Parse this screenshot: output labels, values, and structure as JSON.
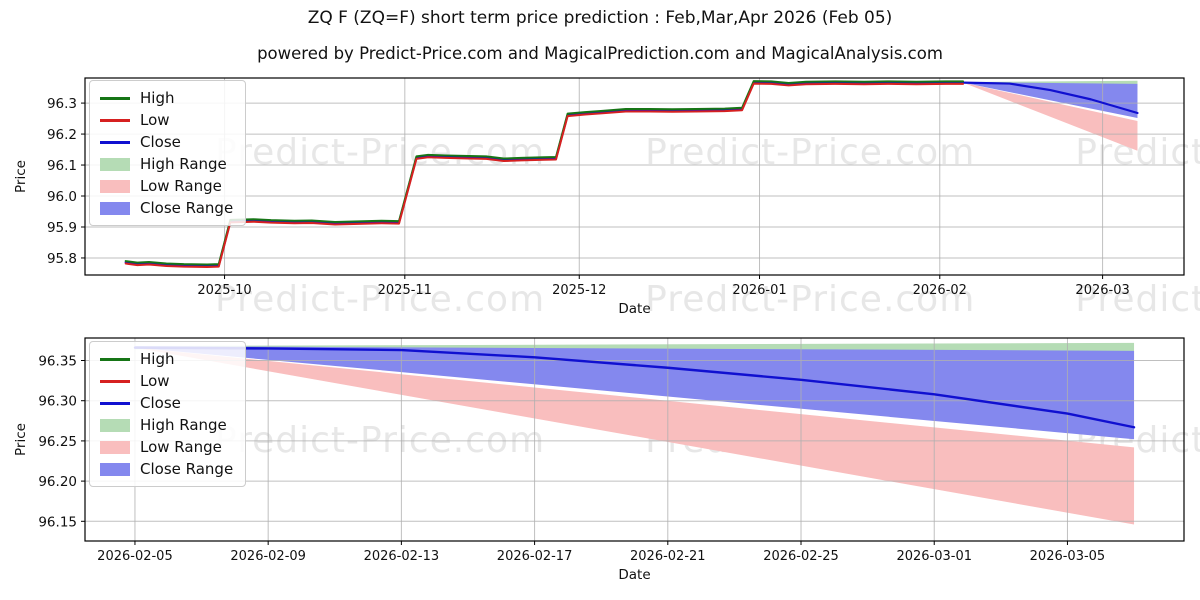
{
  "figure": {
    "title": "ZQ F (ZQ=F) short term price prediction : Feb,Mar,Apr 2026 (Feb 05)",
    "subtitle": "powered by Predict-Price.com and MagicalPrediction.com and MagicalAnalysis.com",
    "watermark_text": "Predict-Price.com",
    "background": "#ffffff"
  },
  "colors": {
    "high_line": "#167516",
    "low_line": "#d62020",
    "close_line": "#1010d0",
    "high_range": "#b5dcb5",
    "low_range": "#f9bebe",
    "close_range": "#8488ee",
    "grid": "#b0b0b0",
    "frame": "#000000",
    "text": "#111111"
  },
  "legend": {
    "items": [
      {
        "label": "High",
        "swatch": "line",
        "color_key": "high_line"
      },
      {
        "label": "Low",
        "swatch": "line",
        "color_key": "low_line"
      },
      {
        "label": "Close",
        "swatch": "line",
        "color_key": "close_line"
      },
      {
        "label": "High Range",
        "swatch": "patch",
        "color_key": "high_range"
      },
      {
        "label": "Low Range",
        "swatch": "patch",
        "color_key": "low_range"
      },
      {
        "label": "Close Range",
        "swatch": "patch",
        "color_key": "close_range"
      }
    ]
  },
  "chart_data": [
    {
      "type": "line",
      "name": "overview",
      "xlabel": "Date",
      "ylabel": "Price",
      "x_domain": [
        "2025-09-07",
        "2026-03-15"
      ],
      "y_domain": [
        95.745,
        96.381
      ],
      "x_ticks": [
        {
          "date": "2025-10-01",
          "label": "2025-10"
        },
        {
          "date": "2025-11-01",
          "label": "2025-11"
        },
        {
          "date": "2025-12-01",
          "label": "2025-12"
        },
        {
          "date": "2026-01-01",
          "label": "2026-01"
        },
        {
          "date": "2026-02-01",
          "label": "2026-02"
        },
        {
          "date": "2026-03-01",
          "label": "2026-03"
        }
      ],
      "y_ticks": [
        {
          "value": 95.8,
          "label": "95.8"
        },
        {
          "value": 95.9,
          "label": "95.9"
        },
        {
          "value": 96.0,
          "label": "96.0"
        },
        {
          "value": 96.1,
          "label": "96.1"
        },
        {
          "value": 96.2,
          "label": "96.2"
        },
        {
          "value": 96.3,
          "label": "96.3"
        }
      ],
      "bands": [
        {
          "name": "High Range",
          "color_key": "high_range",
          "upper": [
            [
              "2026-02-05",
              96.368
            ],
            [
              "2026-03-07",
              96.372
            ]
          ],
          "lower": [
            [
              "2026-02-05",
              96.364
            ],
            [
              "2026-03-07",
              96.352
            ]
          ]
        },
        {
          "name": "Low Range",
          "color_key": "low_range",
          "upper": [
            [
              "2026-02-05",
              96.366
            ],
            [
              "2026-03-07",
              96.242
            ]
          ],
          "lower": [
            [
              "2026-02-05",
              96.366
            ],
            [
              "2026-03-07",
              96.146
            ]
          ]
        },
        {
          "name": "Close Range",
          "color_key": "close_range",
          "upper": [
            [
              "2026-02-05",
              96.368
            ],
            [
              "2026-03-07",
              96.362
            ]
          ],
          "lower": [
            [
              "2026-02-05",
              96.366
            ],
            [
              "2026-03-07",
              96.252
            ]
          ]
        }
      ],
      "series": [
        {
          "name": "Close",
          "color_key": "close_line",
          "width": 2.2,
          "points": [
            [
              "2025-09-14",
              95.786
            ],
            [
              "2025-09-16",
              95.781
            ],
            [
              "2025-09-18",
              95.783
            ],
            [
              "2025-09-21",
              95.778
            ],
            [
              "2025-09-24",
              95.776
            ],
            [
              "2025-09-28",
              95.775
            ],
            [
              "2025-09-30",
              95.776
            ],
            [
              "2025-10-02",
              95.919
            ],
            [
              "2025-10-06",
              95.921
            ],
            [
              "2025-10-09",
              95.918
            ],
            [
              "2025-10-13",
              95.916
            ],
            [
              "2025-10-16",
              95.917
            ],
            [
              "2025-10-20",
              95.912
            ],
            [
              "2025-10-24",
              95.914
            ],
            [
              "2025-10-28",
              95.916
            ],
            [
              "2025-10-31",
              95.915
            ],
            [
              "2025-11-03",
              96.124
            ],
            [
              "2025-11-05",
              96.129
            ],
            [
              "2025-11-08",
              96.127
            ],
            [
              "2025-11-12",
              96.125
            ],
            [
              "2025-11-15",
              96.124
            ],
            [
              "2025-11-18",
              96.117
            ],
            [
              "2025-11-21",
              96.119
            ],
            [
              "2025-11-25",
              96.121
            ],
            [
              "2025-11-27",
              96.122
            ],
            [
              "2025-11-29",
              96.262
            ],
            [
              "2025-12-02",
              96.267
            ],
            [
              "2025-12-05",
              96.271
            ],
            [
              "2025-12-09",
              96.277
            ],
            [
              "2025-12-13",
              96.277
            ],
            [
              "2025-12-17",
              96.276
            ],
            [
              "2025-12-21",
              96.277
            ],
            [
              "2025-12-26",
              96.278
            ],
            [
              "2025-12-29",
              96.281
            ],
            [
              "2025-12-31",
              96.367
            ],
            [
              "2026-01-03",
              96.366
            ],
            [
              "2026-01-06",
              96.361
            ],
            [
              "2026-01-09",
              96.365
            ],
            [
              "2026-01-14",
              96.366
            ],
            [
              "2026-01-19",
              96.365
            ],
            [
              "2026-01-23",
              96.366
            ],
            [
              "2026-01-28",
              96.365
            ],
            [
              "2026-02-02",
              96.366
            ],
            [
              "2026-02-05",
              96.366
            ],
            [
              "2026-02-13",
              96.363
            ],
            [
              "2026-02-20",
              96.342
            ],
            [
              "2026-02-27",
              96.312
            ],
            [
              "2026-03-07",
              96.268
            ]
          ]
        },
        {
          "name": "High",
          "color_key": "high_line",
          "width": 2,
          "points": [
            [
              "2025-09-14",
              95.79
            ],
            [
              "2025-09-16",
              95.785
            ],
            [
              "2025-09-18",
              95.787
            ],
            [
              "2025-09-21",
              95.782
            ],
            [
              "2025-09-24",
              95.78
            ],
            [
              "2025-09-28",
              95.779
            ],
            [
              "2025-09-30",
              95.78
            ],
            [
              "2025-10-02",
              95.923
            ],
            [
              "2025-10-06",
              95.925
            ],
            [
              "2025-10-09",
              95.922
            ],
            [
              "2025-10-13",
              95.92
            ],
            [
              "2025-10-16",
              95.921
            ],
            [
              "2025-10-20",
              95.916
            ],
            [
              "2025-10-24",
              95.918
            ],
            [
              "2025-10-28",
              95.92
            ],
            [
              "2025-10-31",
              95.919
            ],
            [
              "2025-11-03",
              96.128
            ],
            [
              "2025-11-05",
              96.133
            ],
            [
              "2025-11-08",
              96.131
            ],
            [
              "2025-11-12",
              96.129
            ],
            [
              "2025-11-15",
              96.128
            ],
            [
              "2025-11-18",
              96.121
            ],
            [
              "2025-11-21",
              96.123
            ],
            [
              "2025-11-25",
              96.125
            ],
            [
              "2025-11-27",
              96.126
            ],
            [
              "2025-11-29",
              96.266
            ],
            [
              "2025-12-02",
              96.271
            ],
            [
              "2025-12-05",
              96.275
            ],
            [
              "2025-12-09",
              96.281
            ],
            [
              "2025-12-13",
              96.281
            ],
            [
              "2025-12-17",
              96.28
            ],
            [
              "2025-12-21",
              96.281
            ],
            [
              "2025-12-26",
              96.282
            ],
            [
              "2025-12-29",
              96.285
            ],
            [
              "2025-12-31",
              96.371
            ],
            [
              "2026-01-03",
              96.37
            ],
            [
              "2026-01-06",
              96.365
            ],
            [
              "2026-01-09",
              96.369
            ],
            [
              "2026-01-14",
              96.37
            ],
            [
              "2026-01-19",
              96.369
            ],
            [
              "2026-01-23",
              96.37
            ],
            [
              "2026-01-28",
              96.369
            ],
            [
              "2026-02-02",
              96.37
            ],
            [
              "2026-02-05",
              96.37
            ]
          ]
        },
        {
          "name": "Low",
          "color_key": "low_line",
          "width": 2,
          "points": [
            [
              "2025-09-14",
              95.782
            ],
            [
              "2025-09-16",
              95.777
            ],
            [
              "2025-09-18",
              95.779
            ],
            [
              "2025-09-21",
              95.774
            ],
            [
              "2025-09-24",
              95.772
            ],
            [
              "2025-09-28",
              95.771
            ],
            [
              "2025-09-30",
              95.772
            ],
            [
              "2025-10-02",
              95.915
            ],
            [
              "2025-10-06",
              95.917
            ],
            [
              "2025-10-09",
              95.914
            ],
            [
              "2025-10-13",
              95.912
            ],
            [
              "2025-10-16",
              95.913
            ],
            [
              "2025-10-20",
              95.908
            ],
            [
              "2025-10-24",
              95.91
            ],
            [
              "2025-10-28",
              95.912
            ],
            [
              "2025-10-31",
              95.911
            ],
            [
              "2025-11-03",
              96.12
            ],
            [
              "2025-11-05",
              96.125
            ],
            [
              "2025-11-08",
              96.123
            ],
            [
              "2025-11-12",
              96.121
            ],
            [
              "2025-11-15",
              96.12
            ],
            [
              "2025-11-18",
              96.113
            ],
            [
              "2025-11-21",
              96.115
            ],
            [
              "2025-11-25",
              96.117
            ],
            [
              "2025-11-27",
              96.118
            ],
            [
              "2025-11-29",
              96.258
            ],
            [
              "2025-12-02",
              96.263
            ],
            [
              "2025-12-05",
              96.267
            ],
            [
              "2025-12-09",
              96.273
            ],
            [
              "2025-12-13",
              96.273
            ],
            [
              "2025-12-17",
              96.272
            ],
            [
              "2025-12-21",
              96.273
            ],
            [
              "2025-12-26",
              96.274
            ],
            [
              "2025-12-29",
              96.277
            ],
            [
              "2025-12-31",
              96.363
            ],
            [
              "2026-01-03",
              96.362
            ],
            [
              "2026-01-06",
              96.357
            ],
            [
              "2026-01-09",
              96.361
            ],
            [
              "2026-01-14",
              96.362
            ],
            [
              "2026-01-19",
              96.361
            ],
            [
              "2026-01-23",
              96.362
            ],
            [
              "2026-01-28",
              96.361
            ],
            [
              "2026-02-02",
              96.362
            ],
            [
              "2026-02-05",
              96.362
            ]
          ]
        }
      ]
    },
    {
      "type": "line",
      "name": "prediction-zoom",
      "xlabel": "Date",
      "ylabel": "Price",
      "x_domain": [
        "2026-02-03T12:00:00Z",
        "2026-03-08T12:00:00Z"
      ],
      "y_domain": [
        96.1255,
        96.378
      ],
      "x_ticks": [
        {
          "date": "2026-02-05",
          "label": "2026-02-05"
        },
        {
          "date": "2026-02-09",
          "label": "2026-02-09"
        },
        {
          "date": "2026-02-13",
          "label": "2026-02-13"
        },
        {
          "date": "2026-02-17",
          "label": "2026-02-17"
        },
        {
          "date": "2026-02-21",
          "label": "2026-02-21"
        },
        {
          "date": "2026-02-25",
          "label": "2026-02-25"
        },
        {
          "date": "2026-03-01",
          "label": "2026-03-01"
        },
        {
          "date": "2026-03-05",
          "label": "2026-03-05"
        }
      ],
      "y_ticks": [
        {
          "value": 96.15,
          "label": "96.15"
        },
        {
          "value": 96.2,
          "label": "96.20"
        },
        {
          "value": 96.25,
          "label": "96.25"
        },
        {
          "value": 96.3,
          "label": "96.30"
        },
        {
          "value": 96.35,
          "label": "96.35"
        }
      ],
      "bands": [
        {
          "name": "High Range",
          "color_key": "high_range",
          "upper": [
            [
              "2026-02-05",
              96.368
            ],
            [
              "2026-03-07",
              96.372
            ]
          ],
          "lower": [
            [
              "2026-02-05",
              96.364
            ],
            [
              "2026-03-07",
              96.352
            ]
          ]
        },
        {
          "name": "Low Range",
          "color_key": "low_range",
          "upper": [
            [
              "2026-02-05",
              96.366
            ],
            [
              "2026-03-07",
              96.242
            ]
          ],
          "lower": [
            [
              "2026-02-05",
              96.366
            ],
            [
              "2026-03-07",
              96.146
            ]
          ]
        },
        {
          "name": "Close Range",
          "color_key": "close_range",
          "upper": [
            [
              "2026-02-05",
              96.368
            ],
            [
              "2026-03-07",
              96.362
            ]
          ],
          "lower": [
            [
              "2026-02-05",
              96.366
            ],
            [
              "2026-03-07",
              96.252
            ]
          ]
        }
      ],
      "series": [
        {
          "name": "Close",
          "color_key": "close_line",
          "width": 2.4,
          "points": [
            [
              "2026-02-05",
              96.366
            ],
            [
              "2026-02-09",
              96.365
            ],
            [
              "2026-02-13",
              96.363
            ],
            [
              "2026-02-17",
              96.354
            ],
            [
              "2026-02-21",
              96.341
            ],
            [
              "2026-02-25",
              96.326
            ],
            [
              "2026-03-01",
              96.308
            ],
            [
              "2026-03-05",
              96.284
            ],
            [
              "2026-03-07",
              96.267
            ]
          ]
        },
        {
          "name": "High",
          "color_key": "high_line",
          "width": 2,
          "points": []
        },
        {
          "name": "Low",
          "color_key": "low_line",
          "width": 2,
          "points": []
        }
      ]
    }
  ]
}
